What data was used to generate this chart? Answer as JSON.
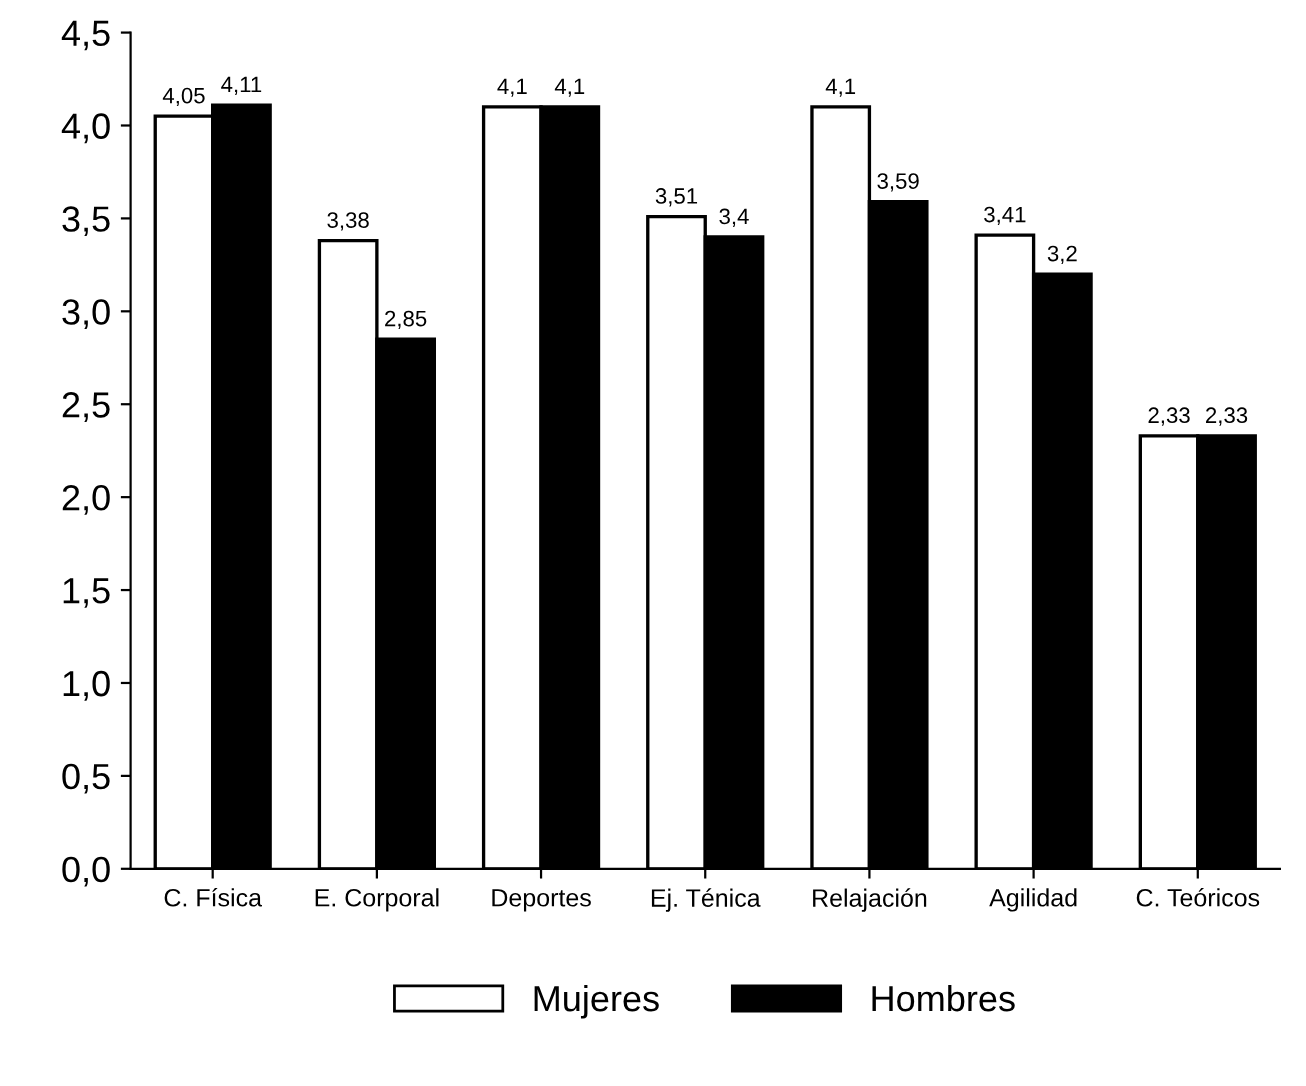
{
  "chart_data": {
    "type": "bar",
    "categories": [
      "C. Física",
      "E. Corporal",
      "Deportes",
      "Ej. Ténica",
      "Relajación",
      "Agilidad",
      "C. Teóricos"
    ],
    "series": [
      {
        "name": "Mujeres",
        "color": "#ffffff",
        "values": [
          4.05,
          3.38,
          4.1,
          3.51,
          4.1,
          3.41,
          2.33
        ],
        "value_labels": [
          "4,05",
          "3,38",
          "4,1",
          "3,51",
          "4,1",
          "3,41",
          "2,33"
        ]
      },
      {
        "name": "Hombres",
        "color": "#000000",
        "values": [
          4.11,
          2.85,
          4.1,
          3.4,
          3.59,
          3.2,
          2.33
        ],
        "value_labels": [
          "4,11",
          "2,85",
          "4,1",
          "3,4",
          "3,59",
          "3,2",
          "2,33"
        ]
      }
    ],
    "ylim": [
      0,
      4.5
    ],
    "yticks": [
      {
        "value": 0,
        "label": "0,0"
      },
      {
        "value": 0.5,
        "label": "0,5"
      },
      {
        "value": 1,
        "label": "1,0"
      },
      {
        "value": 1.5,
        "label": "1,5"
      },
      {
        "value": 2,
        "label": "2,0"
      },
      {
        "value": 2.5,
        "label": "2,5"
      },
      {
        "value": 3,
        "label": "3,0"
      },
      {
        "value": 3.5,
        "label": "3,5"
      },
      {
        "value": 4,
        "label": "4,0"
      },
      {
        "value": 4.5,
        "label": "4,5"
      }
    ],
    "grid": false,
    "legend": "bottom"
  }
}
